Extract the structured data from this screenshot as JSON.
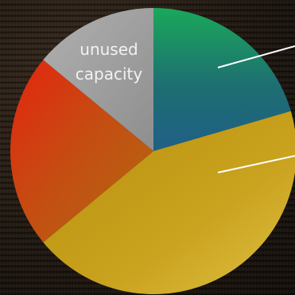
{
  "chart_data": {
    "type": "pie",
    "slices": [
      {
        "label": "",
        "value": 20.5,
        "color": "#1e6a78"
      },
      {
        "label": "",
        "value": 43.5,
        "color": "#c8a31e"
      },
      {
        "label": "",
        "value": 22.0,
        "color": "#cf3f12"
      },
      {
        "label": "unused capacity",
        "value": 14.0,
        "color": "#9e9e9e"
      }
    ],
    "start_angle_deg": 0,
    "direction": "clockwise",
    "leader_lines": true
  },
  "labels": {
    "unused_line1": "unused",
    "unused_line2": "capacity"
  }
}
